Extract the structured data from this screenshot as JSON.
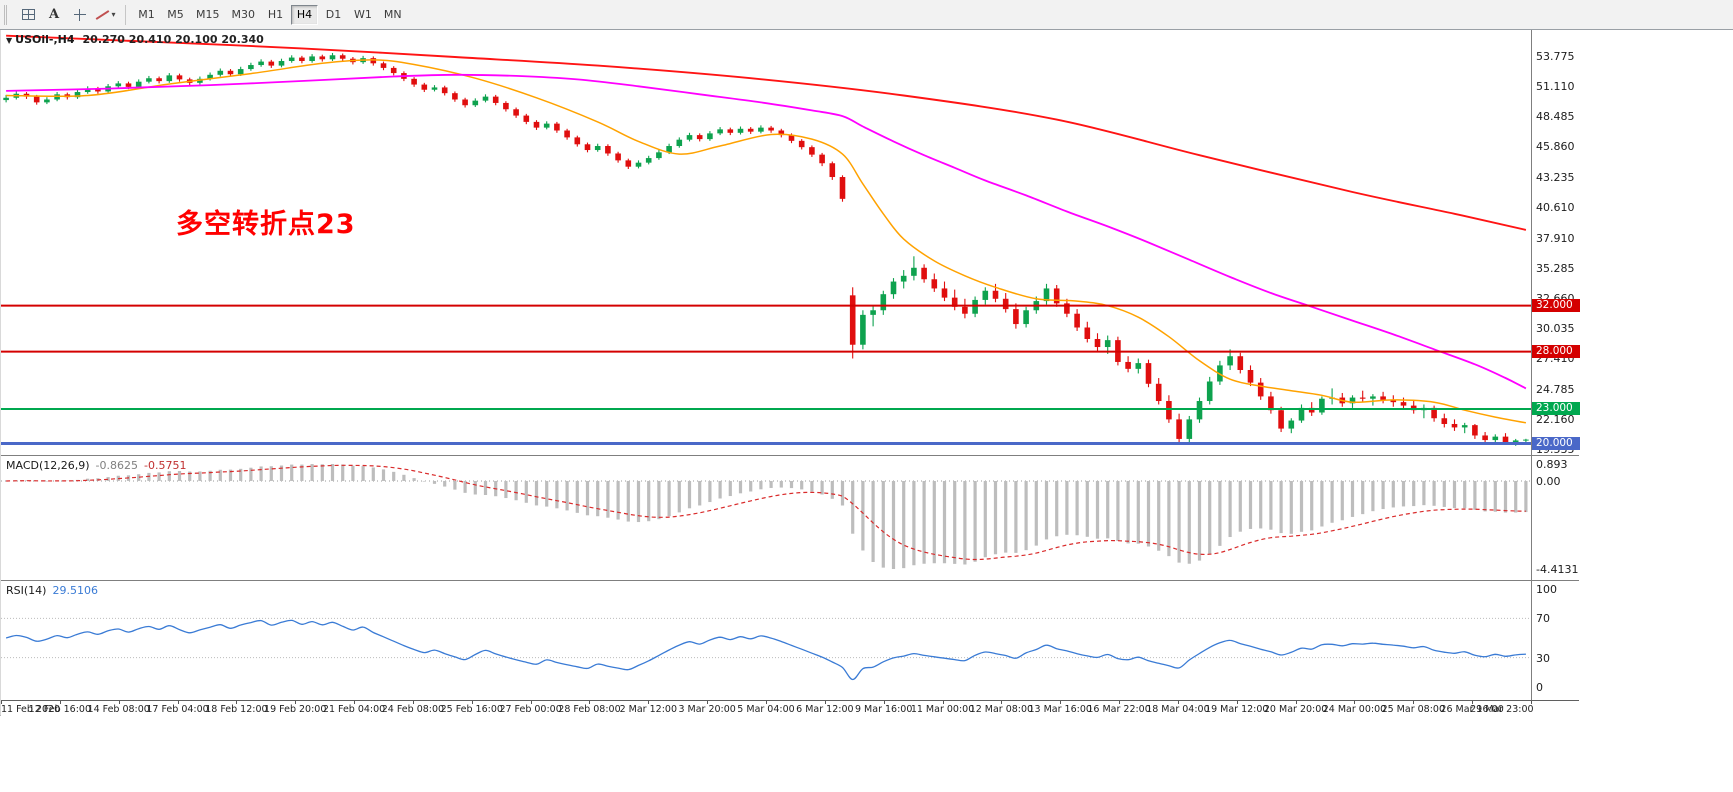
{
  "toolbar": {
    "tools": [
      {
        "name": "chart-grid",
        "label": ""
      },
      {
        "name": "text-annotation",
        "label": "A"
      },
      {
        "name": "crosshair",
        "label": ""
      },
      {
        "name": "line-studies",
        "label": "",
        "has_caret": true
      }
    ],
    "timeframes": [
      "M1",
      "M5",
      "M15",
      "M30",
      "H1",
      "H4",
      "D1",
      "W1",
      "MN"
    ],
    "active_timeframe": "H4"
  },
  "main_chart": {
    "collapse_arrow": "▼",
    "symbol_label": "USOil-,H4",
    "ohlc_text": "20.270 20.410 20.100 20.340",
    "annotation": {
      "text": "多空转折点23",
      "color": "#ff0000"
    }
  },
  "macd_panel": {
    "title": "MACD(12,26,9)",
    "main_value": "-0.8625",
    "signal_value": "-0.5751",
    "axis_labels": {
      "top": "0.893",
      "zero": "0.00",
      "bottom": "-4.4131"
    }
  },
  "rsi_panel": {
    "title": "RSI(14)",
    "value": "29.5106",
    "axis_labels": [
      "100",
      "70",
      "30",
      "0"
    ],
    "levels": [
      70,
      30
    ]
  },
  "chart_data": {
    "type": "candlestick",
    "symbol": "USOil-",
    "timeframe": "H4",
    "up_color": "#0ea24e",
    "down_color": "#e00e0e",
    "price_axis": {
      "min": 19.0,
      "max": 56.0,
      "tick_labels": [
        "53.775",
        "51.110",
        "48.485",
        "45.860",
        "43.235",
        "40.610",
        "37.910",
        "35.285",
        "32.660",
        "30.035",
        "27.410",
        "24.785",
        "22.160",
        "19.535"
      ]
    },
    "hlines": [
      {
        "price": 32.0,
        "label": "32.000",
        "color": "#d40000",
        "width": 2
      },
      {
        "price": 28.0,
        "label": "28.000",
        "color": "#d40000",
        "width": 2
      },
      {
        "price": 23.0,
        "label": "23.000",
        "color": "#00a84f",
        "width": 2
      },
      {
        "price": 20.0,
        "label": "20.000",
        "color": "#4a68c8",
        "width": 3
      }
    ],
    "moving_averages": [
      {
        "name": "fast-ma",
        "color": "#ffa200",
        "width": 1.5,
        "points": [
          [
            0,
            50.3
          ],
          [
            8,
            50.3
          ],
          [
            16,
            51.3
          ],
          [
            24,
            52.2
          ],
          [
            31,
            53.1
          ],
          [
            36,
            53.4
          ],
          [
            40,
            53.0
          ],
          [
            46,
            51.8
          ],
          [
            52,
            50.1
          ],
          [
            58,
            48.0
          ],
          [
            62,
            46.3
          ],
          [
            66,
            45.2
          ],
          [
            70,
            45.9
          ],
          [
            75,
            46.9
          ],
          [
            79,
            46.5
          ],
          [
            82,
            45.2
          ],
          [
            84,
            42.6
          ],
          [
            86,
            40.0
          ],
          [
            88,
            37.8
          ],
          [
            91,
            35.9
          ],
          [
            94,
            34.6
          ],
          [
            97,
            33.6
          ],
          [
            101,
            32.6
          ],
          [
            105,
            32.4
          ],
          [
            108,
            32.0
          ],
          [
            111,
            31.0
          ],
          [
            114,
            29.3
          ],
          [
            117,
            27.2
          ],
          [
            120,
            25.6
          ],
          [
            123,
            25.0
          ],
          [
            126,
            24.6
          ],
          [
            129,
            24.2
          ],
          [
            132,
            23.6
          ],
          [
            136,
            23.8
          ],
          [
            140,
            23.6
          ],
          [
            143,
            22.9
          ],
          [
            146,
            22.3
          ],
          [
            149,
            21.8
          ]
        ]
      },
      {
        "name": "mid-ma",
        "color": "#ff00ff",
        "width": 1.8,
        "points": [
          [
            0,
            50.7
          ],
          [
            10,
            50.9
          ],
          [
            20,
            51.2
          ],
          [
            30,
            51.6
          ],
          [
            38,
            51.95
          ],
          [
            44,
            52.1
          ],
          [
            50,
            52.0
          ],
          [
            56,
            51.7
          ],
          [
            62,
            51.1
          ],
          [
            68,
            50.4
          ],
          [
            74,
            49.7
          ],
          [
            79,
            49.0
          ],
          [
            82,
            48.5
          ],
          [
            84,
            47.6
          ],
          [
            87,
            46.3
          ],
          [
            90,
            45.1
          ],
          [
            93,
            44.0
          ],
          [
            96,
            42.9
          ],
          [
            100,
            41.6
          ],
          [
            104,
            40.2
          ],
          [
            108,
            38.9
          ],
          [
            112,
            37.5
          ],
          [
            116,
            36.0
          ],
          [
            120,
            34.5
          ],
          [
            124,
            33.1
          ],
          [
            128,
            31.9
          ],
          [
            132,
            30.7
          ],
          [
            136,
            29.5
          ],
          [
            140,
            28.2
          ],
          [
            144,
            26.9
          ],
          [
            147,
            25.7
          ],
          [
            149,
            24.8
          ]
        ]
      },
      {
        "name": "slow-ma",
        "color": "#ff1414",
        "width": 1.9,
        "points": [
          [
            0,
            55.5
          ],
          [
            15,
            54.95
          ],
          [
            29,
            54.4
          ],
          [
            44,
            53.65
          ],
          [
            58,
            52.9
          ],
          [
            73,
            51.8
          ],
          [
            88,
            50.3
          ],
          [
            103,
            48.2
          ],
          [
            117,
            45.1
          ],
          [
            132,
            41.9
          ],
          [
            142,
            40.0
          ],
          [
            149,
            38.6
          ]
        ]
      }
    ],
    "candles": [
      [
        49.9,
        50.35,
        49.7,
        50.1
      ],
      [
        50.1,
        50.65,
        49.95,
        50.45
      ],
      [
        50.45,
        50.6,
        50,
        50.2
      ],
      [
        50.2,
        50.35,
        49.5,
        49.7
      ],
      [
        49.7,
        50.15,
        49.55,
        49.95
      ],
      [
        49.95,
        50.6,
        49.8,
        50.4
      ],
      [
        50.4,
        50.55,
        49.95,
        50.15
      ],
      [
        50.15,
        50.8,
        50,
        50.6
      ],
      [
        50.6,
        51.1,
        50.45,
        50.9
      ],
      [
        50.9,
        51.05,
        50.45,
        50.65
      ],
      [
        50.65,
        51.3,
        50.5,
        51.1
      ],
      [
        51.1,
        51.55,
        50.95,
        51.35
      ],
      [
        51.35,
        51.5,
        50.85,
        51.05
      ],
      [
        51.05,
        51.7,
        50.9,
        51.5
      ],
      [
        51.5,
        52,
        51.35,
        51.8
      ],
      [
        51.8,
        51.95,
        51.35,
        51.55
      ],
      [
        51.55,
        52.25,
        51.4,
        52.05
      ],
      [
        52.05,
        52.2,
        51.5,
        51.7
      ],
      [
        51.7,
        51.85,
        51.2,
        51.4
      ],
      [
        51.4,
        51.95,
        51.25,
        51.75
      ],
      [
        51.75,
        52.3,
        51.6,
        52.1
      ],
      [
        52.1,
        52.65,
        51.95,
        52.45
      ],
      [
        52.45,
        52.6,
        51.95,
        52.15
      ],
      [
        52.15,
        52.8,
        52,
        52.6
      ],
      [
        52.6,
        53.15,
        52.45,
        52.95
      ],
      [
        52.95,
        53.45,
        52.8,
        53.25
      ],
      [
        53.25,
        53.4,
        52.7,
        52.9
      ],
      [
        52.9,
        53.5,
        52.75,
        53.3
      ],
      [
        53.3,
        53.8,
        53.15,
        53.6
      ],
      [
        53.6,
        53.75,
        53.1,
        53.3
      ],
      [
        53.3,
        53.9,
        53.15,
        53.7
      ],
      [
        53.7,
        53.85,
        53.25,
        53.45
      ],
      [
        53.45,
        54,
        53.3,
        53.8
      ],
      [
        53.8,
        53.95,
        53.3,
        53.5
      ],
      [
        53.5,
        53.65,
        53,
        53.2
      ],
      [
        53.2,
        53.75,
        53.05,
        53.55
      ],
      [
        53.55,
        53.7,
        52.9,
        53.1
      ],
      [
        53.1,
        53.25,
        52.5,
        52.7
      ],
      [
        52.7,
        52.85,
        52.05,
        52.25
      ],
      [
        52.25,
        52.4,
        51.55,
        51.75
      ],
      [
        51.75,
        51.9,
        51.05,
        51.25
      ],
      [
        51.25,
        51.4,
        50.6,
        50.8
      ],
      [
        50.8,
        51.2,
        50.65,
        51
      ],
      [
        51,
        51.15,
        50.3,
        50.5
      ],
      [
        50.5,
        50.65,
        49.75,
        49.95
      ],
      [
        49.95,
        50.1,
        49.25,
        49.45
      ],
      [
        49.45,
        50.05,
        49.3,
        49.85
      ],
      [
        49.85,
        50.4,
        49.7,
        50.2
      ],
      [
        50.2,
        50.35,
        49.45,
        49.65
      ],
      [
        49.65,
        49.8,
        48.9,
        49.1
      ],
      [
        49.1,
        49.25,
        48.35,
        48.55
      ],
      [
        48.55,
        48.7,
        47.8,
        48
      ],
      [
        48,
        48.15,
        47.3,
        47.5
      ],
      [
        47.5,
        48.05,
        47.35,
        47.85
      ],
      [
        47.85,
        48,
        47.05,
        47.25
      ],
      [
        47.25,
        47.4,
        46.45,
        46.65
      ],
      [
        46.65,
        46.8,
        45.85,
        46.05
      ],
      [
        46.05,
        46.2,
        45.35,
        45.55
      ],
      [
        45.55,
        46.1,
        45.4,
        45.9
      ],
      [
        45.9,
        46.05,
        45.05,
        45.25
      ],
      [
        45.25,
        45.4,
        44.45,
        44.65
      ],
      [
        44.65,
        44.8,
        43.9,
        44.1
      ],
      [
        44.1,
        44.65,
        43.95,
        44.45
      ],
      [
        44.45,
        45.05,
        44.3,
        44.85
      ],
      [
        44.85,
        45.55,
        44.7,
        45.35
      ],
      [
        45.35,
        46.1,
        45.2,
        45.9
      ],
      [
        45.9,
        46.65,
        45.75,
        46.45
      ],
      [
        46.45,
        47.05,
        46.3,
        46.85
      ],
      [
        46.85,
        47,
        46.3,
        46.5
      ],
      [
        46.5,
        47.2,
        46.35,
        47
      ],
      [
        47,
        47.55,
        46.85,
        47.35
      ],
      [
        47.35,
        47.5,
        46.85,
        47.05
      ],
      [
        47.05,
        47.6,
        46.9,
        47.4
      ],
      [
        47.4,
        47.55,
        46.95,
        47.15
      ],
      [
        47.15,
        47.7,
        47,
        47.5
      ],
      [
        47.5,
        47.65,
        47.05,
        47.25
      ],
      [
        47.25,
        47.4,
        46.65,
        46.85
      ],
      [
        46.85,
        47,
        46.15,
        46.35
      ],
      [
        46.35,
        46.5,
        45.6,
        45.8
      ],
      [
        45.8,
        45.95,
        44.95,
        45.15
      ],
      [
        45.15,
        45.3,
        44.15,
        44.4
      ],
      [
        44.4,
        44.55,
        42.95,
        43.2
      ],
      [
        43.2,
        43.35,
        41.05,
        41.3
      ],
      [
        32.9,
        33.6,
        27.4,
        28.6
      ],
      [
        28.6,
        31.6,
        28.2,
        31.2
      ],
      [
        31.2,
        32,
        30.2,
        31.6
      ],
      [
        31.6,
        33.3,
        31.2,
        33
      ],
      [
        33,
        34.4,
        32.6,
        34.1
      ],
      [
        34.1,
        35.1,
        33.5,
        34.6
      ],
      [
        34.6,
        36.3,
        34.2,
        35.3
      ],
      [
        35.3,
        35.6,
        34,
        34.3
      ],
      [
        34.3,
        34.8,
        33.2,
        33.5
      ],
      [
        33.5,
        34.1,
        32.4,
        32.7
      ],
      [
        32.7,
        33.4,
        31.6,
        31.9
      ],
      [
        31.9,
        32.6,
        30.9,
        31.3
      ],
      [
        31.3,
        32.8,
        31,
        32.5
      ],
      [
        32.5,
        33.6,
        32.1,
        33.3
      ],
      [
        33.3,
        33.9,
        32.3,
        32.6
      ],
      [
        32.6,
        33.1,
        31.4,
        31.7
      ],
      [
        31.7,
        32.2,
        30,
        30.4
      ],
      [
        30.4,
        31.9,
        30.1,
        31.6
      ],
      [
        31.6,
        32.8,
        31.3,
        32.4
      ],
      [
        32.4,
        33.9,
        32.1,
        33.5
      ],
      [
        33.5,
        33.8,
        31.9,
        32.2
      ],
      [
        32.2,
        32.6,
        31,
        31.3
      ],
      [
        31.3,
        31.7,
        29.8,
        30.1
      ],
      [
        30.1,
        30.6,
        28.8,
        29.1
      ],
      [
        29.1,
        29.6,
        28,
        28.4
      ],
      [
        28.4,
        29.4,
        27.8,
        29
      ],
      [
        29,
        29.3,
        26.8,
        27.1
      ],
      [
        27.1,
        27.6,
        26.2,
        26.5
      ],
      [
        26.5,
        27.4,
        26.1,
        27
      ],
      [
        27,
        27.3,
        24.9,
        25.2
      ],
      [
        25.2,
        25.7,
        23.4,
        23.7
      ],
      [
        23.7,
        24.2,
        21.8,
        22.1
      ],
      [
        22.1,
        22.6,
        20.06,
        20.4
      ],
      [
        20.4,
        22.4,
        20.1,
        22.1
      ],
      [
        22.1,
        24,
        21.8,
        23.7
      ],
      [
        23.7,
        25.8,
        23.4,
        25.4
      ],
      [
        25.4,
        27.2,
        25.1,
        26.8
      ],
      [
        26.8,
        28.2,
        26.4,
        27.6
      ],
      [
        27.6,
        27.9,
        26.1,
        26.4
      ],
      [
        26.4,
        26.8,
        25,
        25.3
      ],
      [
        25.3,
        25.7,
        23.8,
        24.1
      ],
      [
        24.1,
        24.5,
        22.6,
        22.9
      ],
      [
        22.9,
        23.2,
        21,
        21.3
      ],
      [
        21.3,
        22.2,
        20.9,
        22
      ],
      [
        22,
        23.4,
        21.8,
        23.1
      ],
      [
        23.1,
        23.6,
        22.4,
        22.7
      ],
      [
        22.7,
        24.1,
        22.5,
        23.9
      ],
      [
        23.9,
        24.8,
        23.4,
        24
      ],
      [
        24,
        24.4,
        23.2,
        23.5
      ],
      [
        23.5,
        24.2,
        23.1,
        24
      ],
      [
        24,
        24.6,
        23.6,
        23.9
      ],
      [
        23.9,
        24.3,
        23.3,
        24.1
      ],
      [
        24.1,
        24.5,
        23.5,
        23.8
      ],
      [
        23.8,
        24.2,
        23.2,
        23.6
      ],
      [
        23.6,
        24,
        23,
        23.3
      ],
      [
        23.3,
        23.7,
        22.6,
        22.9
      ],
      [
        22.9,
        23.4,
        22.2,
        23.1
      ],
      [
        23.1,
        23.3,
        21.9,
        22.2
      ],
      [
        22.2,
        22.6,
        21.4,
        21.7
      ],
      [
        21.7,
        22.1,
        21.1,
        21.4
      ],
      [
        21.4,
        21.8,
        20.9,
        21.6
      ],
      [
        21.6,
        21.7,
        20.4,
        20.7
      ],
      [
        20.7,
        21,
        20,
        20.3
      ],
      [
        20.3,
        20.8,
        20.1,
        20.6
      ],
      [
        20.6,
        20.9,
        19.9,
        20.1
      ],
      [
        20.1,
        20.4,
        19.8,
        20.27
      ],
      [
        20.27,
        20.41,
        20.1,
        20.34
      ]
    ],
    "macd": {
      "fast": 12,
      "slow": 26,
      "signal": 9,
      "hist_color": "#bdbdbd",
      "signal_color": "#d92b2b"
    },
    "rsi": {
      "period": 14,
      "color": "#3a7bd5",
      "level_color": "#bcbcbc"
    },
    "dates": [
      "11 Feb 2020",
      "12 Feb 16:00",
      "14 Feb 08:00",
      "17 Feb 04:00",
      "18 Feb 12:00",
      "19 Feb 20:00",
      "21 Feb 04:00",
      "24 Feb 08:00",
      "25 Feb 16:00",
      "27 Feb 00:00",
      "28 Feb 08:00",
      "2 Mar 12:00",
      "3 Mar 20:00",
      "5 Mar 04:00",
      "6 Mar 12:00",
      "9 Mar 16:00",
      "11 Mar 00:00",
      "12 Mar 08:00",
      "13 Mar 16:00",
      "16 Mar 22:00",
      "18 Mar 04:00",
      "19 Mar 12:00",
      "20 Mar 20:00",
      "24 Mar 00:00",
      "25 Mar 08:00",
      "26 Mar 16:00",
      "29 Mar 23:00"
    ]
  }
}
